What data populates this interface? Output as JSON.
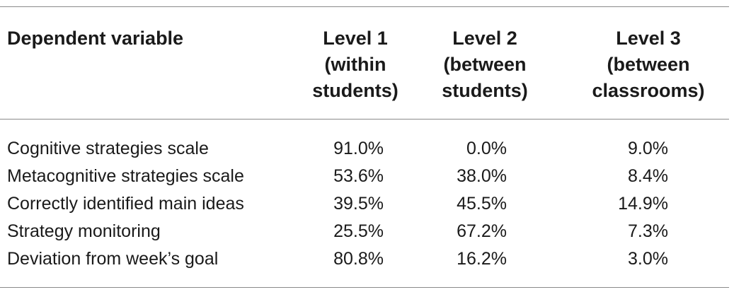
{
  "table": {
    "headers": {
      "label": "Dependent variable",
      "level1": [
        "Level 1",
        "(within",
        "students)"
      ],
      "level2": [
        "Level 2",
        "(between",
        "students)"
      ],
      "level3": [
        "Level 3",
        "(between",
        "classrooms)"
      ]
    },
    "rows": [
      {
        "name": "Cognitive strategies scale",
        "l1": "91.0%",
        "l2": "0.0%",
        "l3": "9.0%"
      },
      {
        "name": "Metacognitive strategies scale",
        "l1": "53.6%",
        "l2": "38.0%",
        "l3": "8.4%"
      },
      {
        "name": "Correctly identified main ideas",
        "l1": "39.5%",
        "l2": "45.5%",
        "l3": "14.9%"
      },
      {
        "name": "Strategy monitoring",
        "l1": "25.5%",
        "l2": "67.2%",
        "l3": "7.3%"
      },
      {
        "name": "Deviation from week’s goal",
        "l1": "80.8%",
        "l2": "16.2%",
        "l3": "3.0%"
      }
    ]
  }
}
